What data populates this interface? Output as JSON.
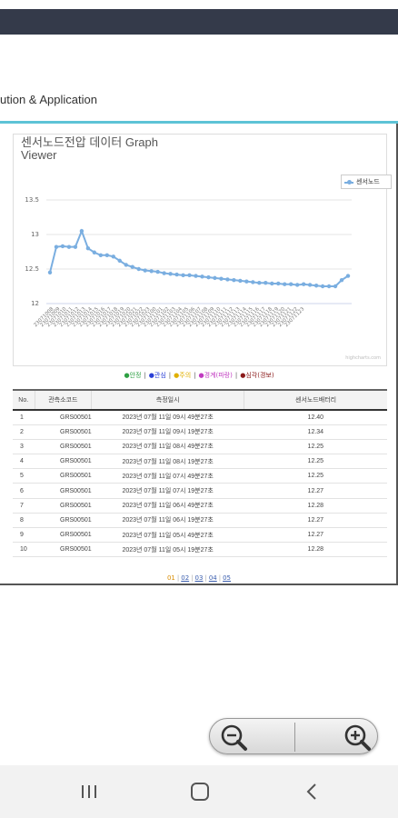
{
  "header": {
    "subtitle": "ution & Application"
  },
  "chart_title": "센서노드전압 데이터  Graph Viewer",
  "chart_data": {
    "type": "line",
    "title": "센서노드전압 데이터  Graph Viewer",
    "legend_position": "top-right",
    "grid": true,
    "ylim": [
      12,
      13.5
    ],
    "yticks": [
      "13.5",
      "13",
      "12.5",
      "12"
    ],
    "series": [
      {
        "name": "센서노드",
        "color": "#7aaee0",
        "x": [
          "23071008",
          "23071009",
          "23071010",
          "23071011",
          "23071012",
          "23071013",
          "23071014",
          "23071015",
          "23071016",
          "23071017",
          "23071018",
          "23071019",
          "23071020",
          "23071021",
          "23071022",
          "23071023",
          "23071100",
          "23071101",
          "23071102",
          "23071103",
          "23071104",
          "23071105",
          "23071106",
          "23071107",
          "23071108",
          "23071109",
          "23071110",
          "23071111",
          "23071112",
          "23071113",
          "23071114",
          "23071115",
          "23071116",
          "23071117",
          "23071118",
          "23071119",
          "23071120",
          "23071121",
          "23071122",
          "23071123",
          "23071200",
          "23071201",
          "23071202",
          "23071203",
          "23071204",
          "23071205",
          "23071206",
          "23071207"
        ],
        "values": [
          12.45,
          12.82,
          12.83,
          12.82,
          12.82,
          13.05,
          12.8,
          12.74,
          12.7,
          12.7,
          12.68,
          12.62,
          12.56,
          12.53,
          12.5,
          12.48,
          12.47,
          12.46,
          12.44,
          12.43,
          12.42,
          12.41,
          12.41,
          12.4,
          12.39,
          12.38,
          12.37,
          12.36,
          12.35,
          12.34,
          12.33,
          12.32,
          12.31,
          12.3,
          12.3,
          12.29,
          12.29,
          12.28,
          12.28,
          12.27,
          12.28,
          12.27,
          12.26,
          12.25,
          12.25,
          12.25,
          12.34,
          12.4
        ]
      }
    ],
    "x_tick_labels": [
      "23071008",
      "23071009",
      "23071010",
      "23071011",
      "23071012",
      "23071013",
      "23071014",
      "23071015",
      "23071016",
      "23071017",
      "23071018",
      "23071019",
      "23071020",
      "23071021",
      "23071022",
      "23071023",
      "23071100",
      "23071101",
      "23071102",
      "23071103",
      "23071104",
      "23071105",
      "23071106",
      "23071107",
      "23071108",
      "23071109",
      "23071110",
      "23071111",
      "23071112",
      "23071113",
      "23071114",
      "23071115",
      "23071116",
      "23071117",
      "23071118",
      "23071119",
      "23071120",
      "23071121",
      "23071122",
      "23071123"
    ]
  },
  "chart_credit": "highcharts.com",
  "status_legend": [
    {
      "label": "●안정",
      "color": "#2ea043"
    },
    {
      "label": "●관심",
      "color": "#2a3fd6"
    },
    {
      "label": "●주의",
      "color": "#e0b000"
    },
    {
      "label": "●경계(파랑)",
      "color": "#c03ac0"
    },
    {
      "label": "●심각(경보)",
      "color": "#8b1a1a"
    }
  ],
  "table": {
    "headers": [
      "No.",
      "관측소코드",
      "측정일시",
      "센서노드배터리"
    ],
    "rows": [
      [
        "1",
        "GRS00501",
        "2023년 07월 11일 09시 49분27초",
        "12.40"
      ],
      [
        "2",
        "GRS00501",
        "2023년 07월 11일 09시 19분27초",
        "12.34"
      ],
      [
        "3",
        "GRS00501",
        "2023년 07월 11일 08시 49분27초",
        "12.25"
      ],
      [
        "4",
        "GRS00501",
        "2023년 07월 11일 08시 19분27초",
        "12.25"
      ],
      [
        "5",
        "GRS00501",
        "2023년 07월 11일 07시 49분27초",
        "12.25"
      ],
      [
        "6",
        "GRS00501",
        "2023년 07월 11일 07시 19분27초",
        "12.27"
      ],
      [
        "7",
        "GRS00501",
        "2023년 07월 11일 06시 49분27초",
        "12.28"
      ],
      [
        "8",
        "GRS00501",
        "2023년 07월 11일 06시 19분27초",
        "12.27"
      ],
      [
        "9",
        "GRS00501",
        "2023년 07월 11일 05시 49분27초",
        "12.27"
      ],
      [
        "10",
        "GRS00501",
        "2023년 07월 11일 05시 19분27초",
        "12.28"
      ]
    ]
  },
  "pagination": {
    "pages": [
      "01",
      "02",
      "03",
      "04",
      "05"
    ],
    "current": "01",
    "separator": "|"
  },
  "zoom": {
    "out_icon": "zoom-out-icon",
    "in_icon": "zoom-in-icon"
  },
  "nav": {
    "recents_icon": "recents-icon",
    "home_icon": "home-icon",
    "back_icon": "back-icon"
  }
}
